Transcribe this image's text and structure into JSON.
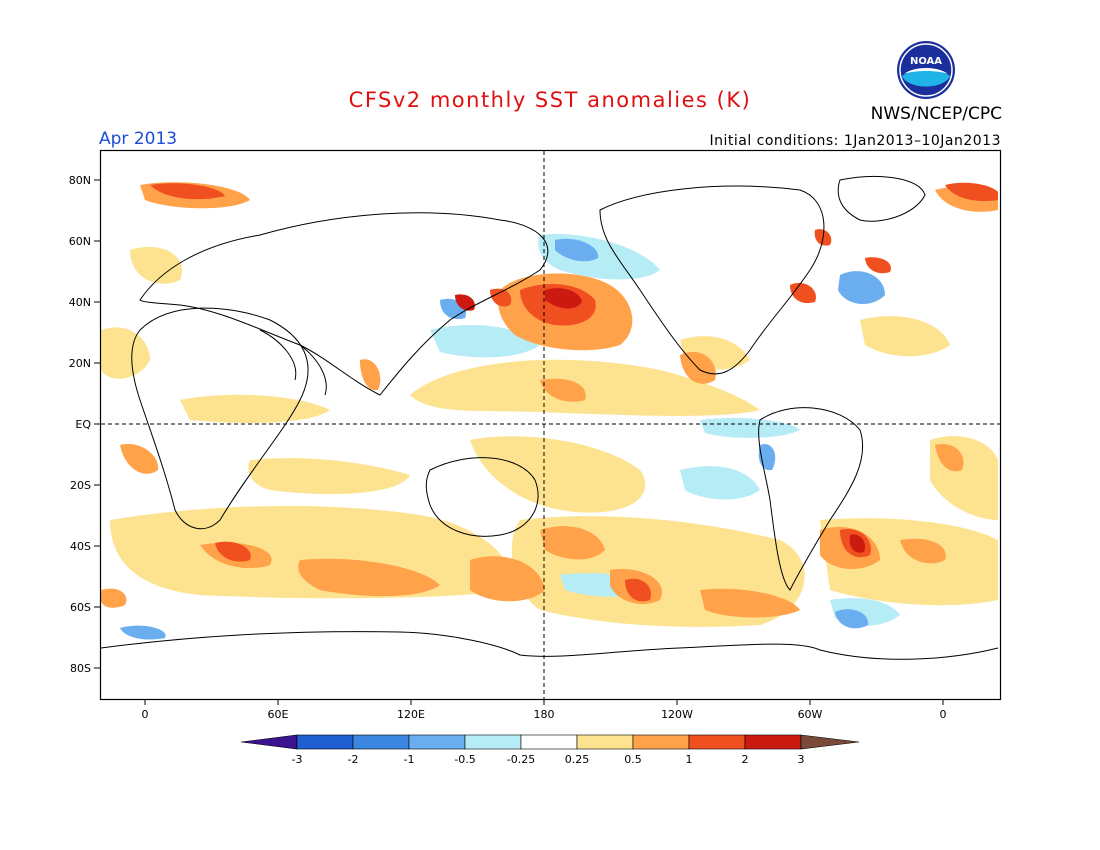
{
  "header": {
    "title": "CFSv2 monthly SST anomalies (K)",
    "organization": "NWS/NCEP/CPC",
    "logo_text": "NOAA",
    "valid_month": "Apr 2013",
    "initial_conditions": "Initial conditions: 1Jan2013–10Jan2013"
  },
  "map": {
    "lat_labels": [
      "80N",
      "60N",
      "40N",
      "20N",
      "EQ",
      "20S",
      "40S",
      "60S",
      "80S"
    ],
    "lon_labels": [
      "0",
      "60E",
      "120E",
      "180",
      "120W",
      "60W",
      "0"
    ],
    "colors": {
      "land_outline": "#000000",
      "ocean_neutral": "#ffffff"
    }
  },
  "colorbar": {
    "labels": [
      "-3",
      "-2",
      "-1",
      "-0.5",
      "-0.25",
      "0.25",
      "0.5",
      "1",
      "2",
      "3"
    ],
    "colors": [
      "#3b1290",
      "#1f5fd0",
      "#3a86e0",
      "#6aaef0",
      "#b6ecf6",
      "#ffffff",
      "#fde390",
      "#ffa24a",
      "#f05020",
      "#cc1a10",
      "#9a1410",
      "#7a4a38"
    ]
  }
}
